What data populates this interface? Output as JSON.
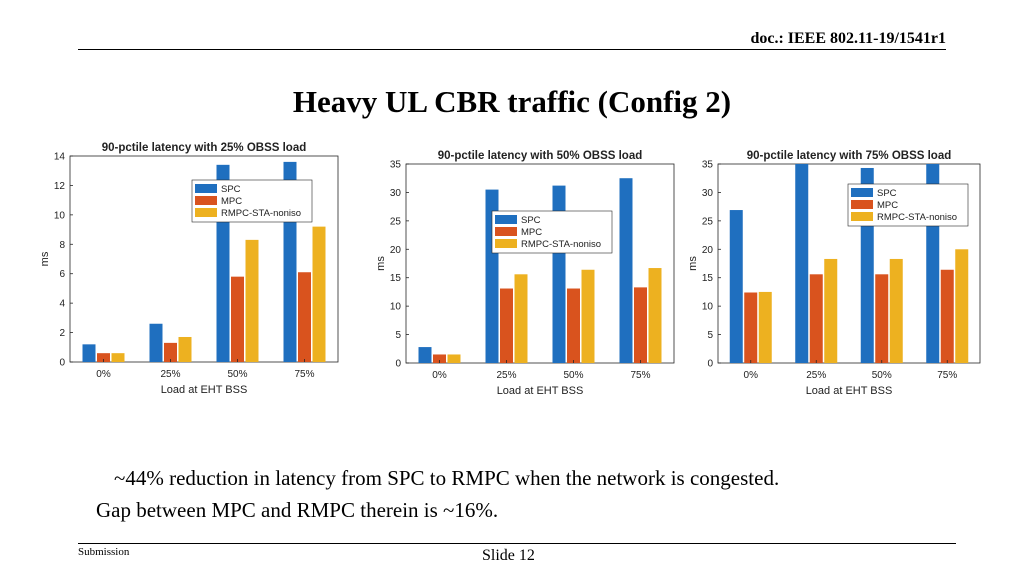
{
  "header": {
    "doc_label": "doc.: IEEE 802.11-19/1541r1"
  },
  "slide": {
    "title": "Heavy UL CBR traffic (Config 2)"
  },
  "colors": {
    "SPC": "#1f6fbf",
    "MPC": "#d9531e",
    "RMPC-STA-noniso": "#edb120"
  },
  "chart_data": [
    {
      "type": "bar",
      "title": "90-pctile latency with 25% OBSS load",
      "xlabel": "Load at EHT BSS",
      "ylabel": "ms",
      "categories": [
        "0%",
        "25%",
        "50%",
        "75%"
      ],
      "ylim": [
        0,
        14
      ],
      "yticks": [
        0,
        2,
        4,
        6,
        8,
        10,
        12,
        14
      ],
      "legend_position": "top-center",
      "series": [
        {
          "name": "SPC",
          "values": [
            1.2,
            2.6,
            13.4,
            13.6
          ]
        },
        {
          "name": "MPC",
          "values": [
            0.6,
            1.3,
            5.8,
            6.1
          ]
        },
        {
          "name": "RMPC-STA-noniso",
          "values": [
            0.6,
            1.7,
            8.3,
            9.2
          ]
        }
      ]
    },
    {
      "type": "bar",
      "title": "90-pctile latency with 50% OBSS load",
      "xlabel": "Load at EHT BSS",
      "ylabel": "ms",
      "categories": [
        "0%",
        "25%",
        "50%",
        "75%"
      ],
      "ylim": [
        0,
        35
      ],
      "yticks": [
        0,
        5,
        10,
        15,
        20,
        25,
        30,
        35
      ],
      "legend_position": "center",
      "series": [
        {
          "name": "SPC",
          "values": [
            2.8,
            30.5,
            31.2,
            32.5
          ]
        },
        {
          "name": "MPC",
          "values": [
            1.5,
            13.1,
            13.1,
            13.3
          ]
        },
        {
          "name": "RMPC-STA-noniso",
          "values": [
            1.5,
            15.6,
            16.4,
            16.7
          ]
        }
      ]
    },
    {
      "type": "bar",
      "title": "90-pctile latency with 75% OBSS load",
      "xlabel": "Load at EHT BSS",
      "ylabel": "ms",
      "categories": [
        "0%",
        "25%",
        "50%",
        "75%"
      ],
      "ylim": [
        0,
        35
      ],
      "yticks": [
        0,
        5,
        10,
        15,
        20,
        25,
        30,
        35
      ],
      "legend_position": "top-right",
      "series": [
        {
          "name": "SPC",
          "values": [
            26.9,
            35,
            34.3,
            35
          ]
        },
        {
          "name": "MPC",
          "values": [
            12.4,
            15.6,
            15.6,
            16.4
          ]
        },
        {
          "name": "RMPC-STA-noniso",
          "values": [
            12.5,
            18.3,
            18.3,
            20.0
          ]
        }
      ]
    }
  ],
  "caption": {
    "line1": "~44% reduction in latency from SPC to RMPC when the network is congested.",
    "line2": "Gap between MPC and RMPC therein is ~16%."
  },
  "footer": {
    "left": "Submission",
    "center": "Slide 12"
  }
}
